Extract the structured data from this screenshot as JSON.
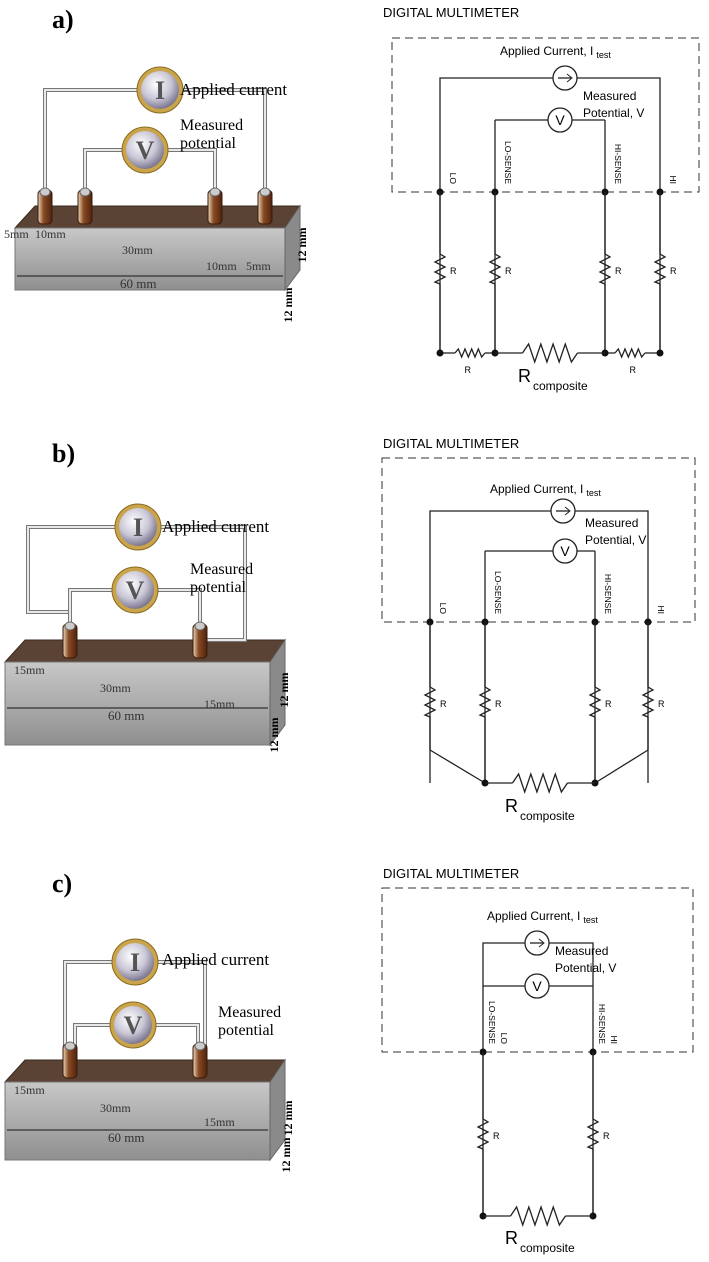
{
  "panels": [
    {
      "label": "a)",
      "sample": {
        "meter_current": "I",
        "meter_voltage": "V",
        "applied": "Applied current",
        "measured": [
          "Measured",
          "potential"
        ],
        "dimensions": [
          "5mm",
          "10mm",
          "30mm",
          "10mm",
          "5mm"
        ],
        "length": "60 mm",
        "height": "12 mm",
        "depth": "12 mm"
      },
      "circuit": {
        "title": "DIGITAL MULTIMETER",
        "applied": "Applied Current, I",
        "applied_sub": "test",
        "measured": [
          "Measured",
          "Potential, V"
        ],
        "voltmeter": "V",
        "terminals": [
          "LO",
          "LO-SENSE",
          "HI-SENSE",
          "HI"
        ],
        "resistors": [
          "R",
          "R",
          "R",
          "R",
          "R",
          "R"
        ],
        "composite": "R",
        "composite_sub": "composite"
      }
    },
    {
      "label": "b)",
      "sample": {
        "meter_current": "I",
        "meter_voltage": "V",
        "applied": "Applied current",
        "measured": [
          "Measured",
          "potential"
        ],
        "dimensions": [
          "15mm",
          "30mm",
          "15mm"
        ],
        "length": "60 mm",
        "height": "12 mm",
        "depth": "12 mm"
      },
      "circuit": {
        "title": "DIGITAL MULTIMETER",
        "applied": "Applied Current, I",
        "applied_sub": "test",
        "measured": [
          "Measured",
          "Potential, V"
        ],
        "voltmeter": "V",
        "terminals": [
          "LO",
          "LO-SENSE",
          "HI-SENSE",
          "HI"
        ],
        "resistors": [
          "R",
          "R",
          "R",
          "R"
        ],
        "composite": "R",
        "composite_sub": "composite"
      }
    },
    {
      "label": "c)",
      "sample": {
        "meter_current": "I",
        "meter_voltage": "V",
        "applied": "Applied current",
        "measured": [
          "Measured",
          "potential"
        ],
        "dimensions": [
          "15mm",
          "30mm",
          "15mm"
        ],
        "length": "60 mm",
        "height": "12 mm",
        "depth": "12 mm"
      },
      "circuit": {
        "title": "DIGITAL MULTIMETER",
        "applied": "Applied Current, I",
        "applied_sub": "test",
        "measured": [
          "Measured",
          "Potential, V"
        ],
        "voltmeter": "V",
        "terminals": [
          "LO-SENSE",
          "LO",
          "HI-SENSE",
          "HI"
        ],
        "resistors": [
          "R",
          "R"
        ],
        "composite": "R",
        "composite_sub": "composite"
      }
    }
  ]
}
